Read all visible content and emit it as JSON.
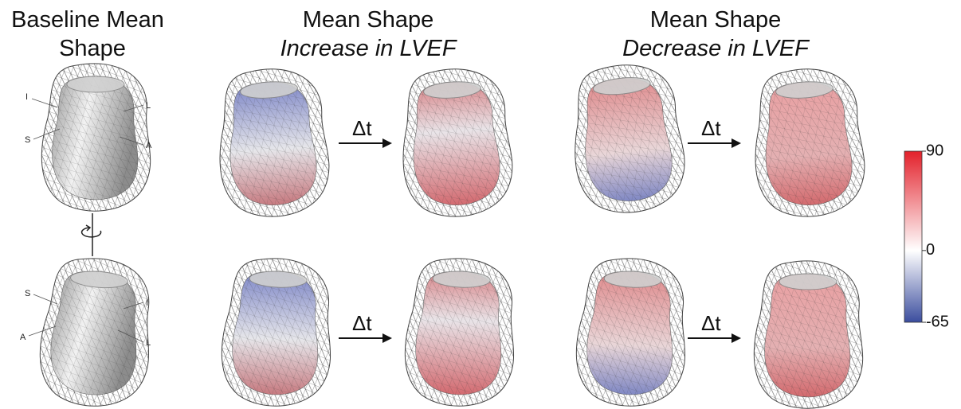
{
  "columns": [
    {
      "title": [
        "Baseline Mean",
        "Shape"
      ]
    },
    {
      "title": [
        "Mean Shape",
        "Increase in LVEF"
      ]
    },
    {
      "title": [
        "Mean Shape",
        "Decrease in LVEF"
      ]
    }
  ],
  "orientation_labels": {
    "top": [
      "I",
      "L",
      "S",
      "A"
    ],
    "bottom": [
      "S",
      "I",
      "A",
      "L"
    ]
  },
  "arrow_label": "Δt",
  "colorbar": {
    "range": [
      -65,
      90
    ],
    "ticks": [
      90,
      0,
      -65
    ],
    "colors": [
      "#3b4d9e",
      "#ffffff",
      "#e3212b"
    ]
  }
}
